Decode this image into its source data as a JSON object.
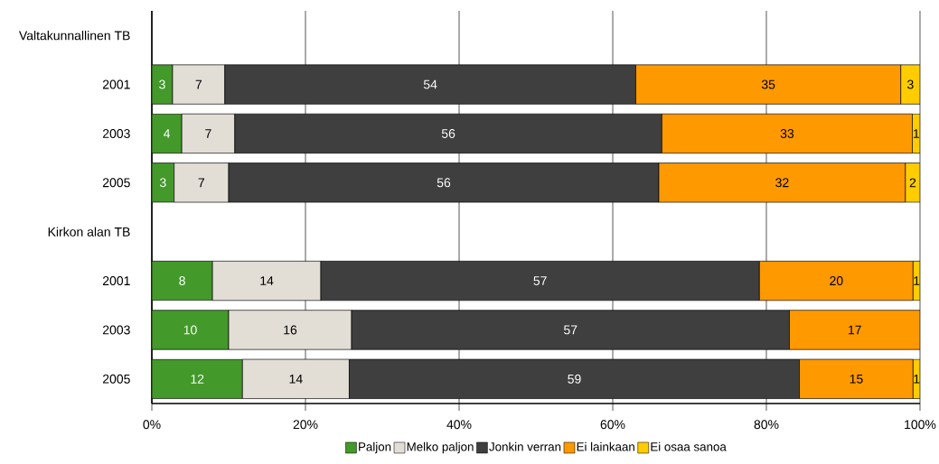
{
  "chart_data": {
    "type": "bar",
    "orientation": "horizontal",
    "stacked": true,
    "categories": [
      "Valtakunnallinen TB",
      "2001",
      "2003",
      "2005",
      "Kirkon alan TB",
      "2001",
      "2003",
      "2005"
    ],
    "series": [
      {
        "name": "Paljon",
        "color": "#43992a",
        "values": [
          null,
          2.7,
          3.9,
          2.9,
          null,
          7.9,
          10.0,
          11.8
        ],
        "value_labels": [
          null,
          "3",
          "4",
          "3",
          null,
          "8",
          "10",
          "12"
        ]
      },
      {
        "name": "Melko paljon",
        "color": "#e2ded6",
        "values": [
          null,
          6.8,
          6.9,
          7.1,
          null,
          14.1,
          16.0,
          13.9
        ],
        "value_labels": [
          null,
          "7",
          "7",
          "7",
          null,
          "14",
          "16",
          "14"
        ]
      },
      {
        "name": "Jonkin verran",
        "color": "#3f3f3f",
        "values": [
          null,
          53.5,
          55.6,
          56.0,
          null,
          57.1,
          57.0,
          58.6
        ],
        "value_labels": [
          null,
          "54",
          "56",
          "56",
          null,
          "57",
          "57",
          "59"
        ]
      },
      {
        "name": "Ei lainkaan",
        "color": "#ff9900",
        "values": [
          null,
          34.5,
          32.6,
          32.1,
          null,
          20.0,
          17.0,
          14.8
        ],
        "value_labels": [
          null,
          "35",
          "33",
          "32",
          null,
          "20",
          "17",
          "15"
        ]
      },
      {
        "name": "Ei osaa sanoa",
        "color": "#ffcc00",
        "values": [
          null,
          2.5,
          1.0,
          1.9,
          null,
          0.9,
          null,
          0.9
        ],
        "value_labels": [
          null,
          "3",
          "1",
          "2",
          null,
          "1",
          null,
          "1"
        ]
      }
    ],
    "xlim": [
      0,
      100
    ],
    "xticks": [
      {
        "value": 0,
        "label": "0%"
      },
      {
        "value": 20,
        "label": "20%"
      },
      {
        "value": 40,
        "label": "40%"
      },
      {
        "value": 60,
        "label": "60%"
      },
      {
        "value": 80,
        "label": "80%"
      },
      {
        "value": 100,
        "label": "100%"
      }
    ],
    "grid": "x",
    "legend": "bottom"
  }
}
